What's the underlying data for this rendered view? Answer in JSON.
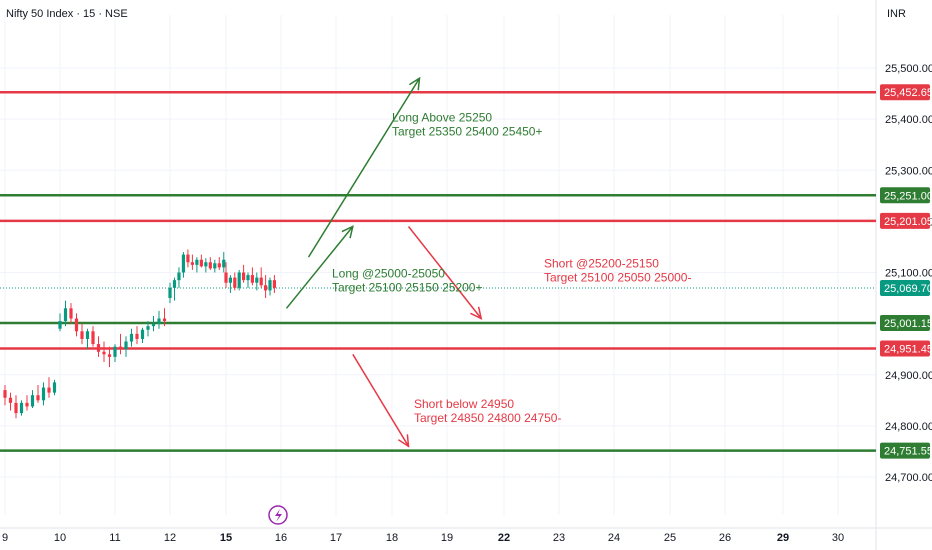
{
  "header": {
    "title": "Nifty 50 Index · 15 · NSE",
    "currency": "INR"
  },
  "colors": {
    "up": "#089981",
    "down": "#f23645",
    "support": "#2e7d32",
    "resistance": "#e53945",
    "green_text": "#2e7d32",
    "red_text": "#e53945",
    "price_badge": "#089981",
    "event_icon": "#9c27b0"
  },
  "chart_data": {
    "type": "candlestick",
    "y_axis": {
      "ylim": [
        24640,
        25560
      ],
      "ticks": [
        "25,500.00",
        "25,400.00",
        "25,300.00",
        "25,200.00",
        "25,100.00",
        "24,900.00",
        "24,800.00",
        "24,700.00"
      ],
      "tick_values": [
        25500,
        25400,
        25300,
        25200,
        25100,
        24900,
        24800,
        24700
      ]
    },
    "x_axis": {
      "ticks": [
        "9",
        "10",
        "11",
        "12",
        "15",
        "16",
        "17",
        "18",
        "19",
        "22",
        "23",
        "24",
        "25",
        "26",
        "29",
        "30"
      ],
      "bold_ticks": [
        "15",
        "22",
        "29"
      ]
    },
    "last_price": {
      "value": 25069.7,
      "label": "25,069.70"
    },
    "levels": [
      {
        "value": 25452.65,
        "label": "25,452.65",
        "kind": "resistance"
      },
      {
        "value": 25251.0,
        "label": "25,251.00",
        "kind": "support"
      },
      {
        "value": 25201.05,
        "label": "25,201.05",
        "kind": "resistance"
      },
      {
        "value": 25001.15,
        "label": "25,001.15",
        "kind": "support"
      },
      {
        "value": 24951.45,
        "label": "24,951.45",
        "kind": "resistance"
      },
      {
        "value": 24751.55,
        "label": "24,751.55",
        "kind": "support"
      }
    ],
    "annotations": [
      {
        "line1": "Long Above 25250",
        "line2": "Target 25350 25400 25450+",
        "color": "green"
      },
      {
        "line1": "Long @25000-25050",
        "line2": "Target 25100 25150 25200+",
        "color": "green"
      },
      {
        "line1": "Short @25200-25150",
        "line2": "Target 25100 25050 25000-",
        "color": "red"
      },
      {
        "line1": "Short below 24950",
        "line2": "Target 24850 24800 24750-",
        "color": "red"
      }
    ],
    "arrows": [
      {
        "direction": "up",
        "color": "green",
        "from": {
          "day": 16.5,
          "price": 25130
        },
        "to": {
          "day": 18.5,
          "price": 25480
        }
      },
      {
        "direction": "up",
        "color": "green",
        "from": {
          "day": 16.1,
          "price": 25030
        },
        "to": {
          "day": 17.3,
          "price": 25190
        }
      },
      {
        "direction": "down",
        "color": "red",
        "from": {
          "day": 18.3,
          "price": 25190
        },
        "to": {
          "day": 19.6,
          "price": 25010
        }
      },
      {
        "direction": "down",
        "color": "red",
        "from": {
          "day": 17.3,
          "price": 24940
        },
        "to": {
          "day": 18.3,
          "price": 24760
        }
      }
    ],
    "candles": [
      {
        "day": 9.0,
        "o": 24870,
        "h": 24880,
        "l": 24840,
        "c": 24855
      },
      {
        "day": 9.1,
        "o": 24855,
        "h": 24865,
        "l": 24830,
        "c": 24845
      },
      {
        "day": 9.2,
        "o": 24845,
        "h": 24860,
        "l": 24815,
        "c": 24825
      },
      {
        "day": 9.3,
        "o": 24825,
        "h": 24850,
        "l": 24820,
        "c": 24845
      },
      {
        "day": 9.4,
        "o": 24845,
        "h": 24860,
        "l": 24830,
        "c": 24838
      },
      {
        "day": 9.5,
        "o": 24838,
        "h": 24870,
        "l": 24835,
        "c": 24860
      },
      {
        "day": 9.6,
        "o": 24860,
        "h": 24880,
        "l": 24845,
        "c": 24850
      },
      {
        "day": 9.7,
        "o": 24850,
        "h": 24885,
        "l": 24840,
        "c": 24875
      },
      {
        "day": 9.8,
        "o": 24875,
        "h": 24895,
        "l": 24855,
        "c": 24865
      },
      {
        "day": 9.9,
        "o": 24865,
        "h": 24890,
        "l": 24860,
        "c": 24885
      },
      {
        "day": 10.0,
        "o": 24990,
        "h": 25020,
        "l": 24985,
        "c": 25005
      },
      {
        "day": 10.1,
        "o": 25005,
        "h": 25045,
        "l": 24995,
        "c": 25030
      },
      {
        "day": 10.2,
        "o": 25030,
        "h": 25040,
        "l": 25000,
        "c": 25010
      },
      {
        "day": 10.3,
        "o": 25010,
        "h": 25020,
        "l": 24975,
        "c": 24985
      },
      {
        "day": 10.4,
        "o": 24985,
        "h": 25000,
        "l": 24960,
        "c": 24970
      },
      {
        "day": 10.5,
        "o": 24970,
        "h": 24990,
        "l": 24950,
        "c": 24985
      },
      {
        "day": 10.6,
        "o": 24985,
        "h": 24995,
        "l": 24955,
        "c": 24960
      },
      {
        "day": 10.7,
        "o": 24960,
        "h": 24975,
        "l": 24935,
        "c": 24945
      },
      {
        "day": 10.8,
        "o": 24945,
        "h": 24965,
        "l": 24925,
        "c": 24940
      },
      {
        "day": 10.9,
        "o": 24940,
        "h": 24955,
        "l": 24915,
        "c": 24935
      },
      {
        "day": 11.0,
        "o": 24935,
        "h": 24960,
        "l": 24925,
        "c": 24955
      },
      {
        "day": 11.1,
        "o": 24955,
        "h": 24980,
        "l": 24940,
        "c": 24950
      },
      {
        "day": 11.2,
        "o": 24950,
        "h": 24975,
        "l": 24935,
        "c": 24965
      },
      {
        "day": 11.3,
        "o": 24965,
        "h": 24990,
        "l": 24955,
        "c": 24980
      },
      {
        "day": 11.4,
        "o": 24980,
        "h": 24995,
        "l": 24960,
        "c": 24970
      },
      {
        "day": 11.5,
        "o": 24970,
        "h": 24992,
        "l": 24962,
        "c": 24988
      },
      {
        "day": 11.6,
        "o": 24988,
        "h": 25005,
        "l": 24975,
        "c": 24995
      },
      {
        "day": 11.7,
        "o": 24995,
        "h": 25015,
        "l": 24985,
        "c": 25000
      },
      {
        "day": 11.8,
        "o": 25000,
        "h": 25025,
        "l": 24990,
        "c": 25010
      },
      {
        "day": 11.9,
        "o": 25010,
        "h": 25030,
        "l": 24995,
        "c": 25005
      },
      {
        "day": 12.0,
        "o": 25050,
        "h": 25080,
        "l": 25040,
        "c": 25070
      },
      {
        "day": 12.08,
        "o": 25070,
        "h": 25090,
        "l": 25045,
        "c": 25085
      },
      {
        "day": 12.16,
        "o": 25085,
        "h": 25110,
        "l": 25070,
        "c": 25100
      },
      {
        "day": 12.24,
        "o": 25100,
        "h": 25140,
        "l": 25090,
        "c": 25135
      },
      {
        "day": 12.32,
        "o": 25135,
        "h": 25145,
        "l": 25110,
        "c": 25120
      },
      {
        "day": 12.4,
        "o": 25120,
        "h": 25135,
        "l": 25105,
        "c": 25115
      },
      {
        "day": 12.48,
        "o": 25115,
        "h": 25130,
        "l": 25100,
        "c": 25125
      },
      {
        "day": 12.56,
        "o": 25125,
        "h": 25135,
        "l": 25110,
        "c": 25112
      },
      {
        "day": 12.64,
        "o": 25112,
        "h": 25128,
        "l": 25100,
        "c": 25120
      },
      {
        "day": 12.72,
        "o": 25120,
        "h": 25130,
        "l": 25105,
        "c": 25108
      },
      {
        "day": 12.8,
        "o": 25108,
        "h": 25125,
        "l": 25100,
        "c": 25118
      },
      {
        "day": 12.88,
        "o": 25118,
        "h": 25130,
        "l": 25105,
        "c": 25110
      },
      {
        "day": 12.96,
        "o": 25110,
        "h": 25140,
        "l": 25100,
        "c": 25125
      },
      {
        "day": 15.0,
        "o": 25100,
        "h": 25120,
        "l": 25070,
        "c": 25080
      },
      {
        "day": 15.08,
        "o": 25080,
        "h": 25095,
        "l": 25060,
        "c": 25090
      },
      {
        "day": 15.16,
        "o": 25090,
        "h": 25100,
        "l": 25065,
        "c": 25070
      },
      {
        "day": 15.24,
        "o": 25070,
        "h": 25105,
        "l": 25065,
        "c": 25100
      },
      {
        "day": 15.32,
        "o": 25100,
        "h": 25115,
        "l": 25080,
        "c": 25085
      },
      {
        "day": 15.4,
        "o": 25085,
        "h": 25100,
        "l": 25070,
        "c": 25095
      },
      {
        "day": 15.48,
        "o": 25095,
        "h": 25110,
        "l": 25075,
        "c": 25080
      },
      {
        "day": 15.56,
        "o": 25080,
        "h": 25100,
        "l": 25065,
        "c": 25090
      },
      {
        "day": 15.64,
        "o": 25090,
        "h": 25110,
        "l": 25070,
        "c": 25075
      },
      {
        "day": 15.72,
        "o": 25075,
        "h": 25095,
        "l": 25050,
        "c": 25065
      },
      {
        "day": 15.8,
        "o": 25065,
        "h": 25090,
        "l": 25055,
        "c": 25085
      },
      {
        "day": 15.88,
        "o": 25085,
        "h": 25095,
        "l": 25060,
        "c": 25070
      }
    ]
  }
}
